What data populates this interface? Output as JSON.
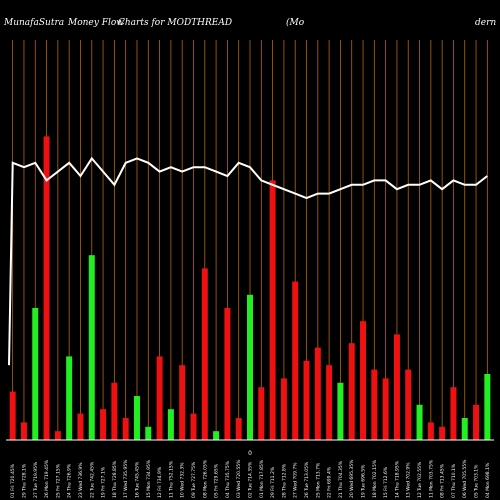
{
  "chart_data": {
    "type": "bar",
    "title_parts": [
      "MunafaSutra",
      "Money Flow",
      "Charts for MODTHREAD",
      "(Mo",
      "dern"
    ],
    "baseline_label": "0",
    "background": "#000000",
    "colors": {
      "up": "#22ee22",
      "down": "#ee1111",
      "grid": "#b8660b",
      "line": "#ffffff",
      "baseline": "#ffffff"
    },
    "ylim": [
      0,
      100
    ],
    "categories": [
      "01 Fri 720.45%",
      "29 Thu 728.1%",
      "27 Tue 719.95%",
      "26 Mon 719.45%",
      "25 Fri 727.15%",
      "24 Thu 726.9%",
      "23 Wed 736.9%",
      "22 Tue 742.45%",
      "19 Fri 727.1%",
      "18 Thu 728.85%",
      "17 Wed 735.95%",
      "16 Tue 745.45%",
      "15 Mon 734.95%",
      "12 Fri 734.9%",
      "11 Thu 752.15%",
      "10 Wed 732.3%",
      "09 Tue 727.75%",
      "08 Mon 726.05%",
      "05 Fri 729.65%",
      "04 Thu 735.75%",
      "03 Wed 720.55%",
      "02 Tue 714.35%",
      "01 Mon 717.85%",
      "29 Fri 711.2%",
      "28 Thu 712.8%",
      "27 Wed 709.7%",
      "26 Tue 713.05%",
      "25 Mon 713.7%",
      "22 Fri 699.4%",
      "21 Thu 704.35%",
      "20 Wed 695.35%",
      "19 Tue 696.5%",
      "18 Mon 702.15%",
      "15 Fri 712.6%",
      "14 Thu 718.95%",
      "13 Wed 702.9%",
      "12 Tue 702.55%",
      "11 Mon 703.75%",
      "08 Fri 713.45%",
      "07 Thu 710.1%",
      "06 Wed 705.55%",
      "05 Tue 703.1%",
      "04 Mon 698.1%"
    ],
    "series": [
      {
        "values": [
          11,
          4,
          30,
          69,
          2,
          19,
          6,
          42,
          7,
          13,
          5,
          10,
          3,
          19,
          7,
          17,
          6,
          39,
          2,
          30,
          5,
          33,
          12,
          59,
          14,
          36,
          18,
          21,
          17,
          13,
          22,
          27,
          16,
          14,
          24,
          16,
          8,
          4,
          3,
          12,
          5,
          8,
          15
        ],
        "directions": [
          "down",
          "down",
          "up",
          "down",
          "down",
          "up",
          "down",
          "up",
          "down",
          "down",
          "down",
          "up",
          "up",
          "down",
          "up",
          "down",
          "down",
          "down",
          "up",
          "down",
          "down",
          "up",
          "down",
          "down",
          "down",
          "down",
          "down",
          "down",
          "down",
          "up",
          "down",
          "down",
          "down",
          "down",
          "down",
          "down",
          "up",
          "down",
          "down",
          "down",
          "up",
          "down",
          "up"
        ]
      }
    ],
    "line": {
      "values": [
        63,
        62,
        63,
        59,
        61,
        63,
        60,
        64,
        61,
        58,
        63,
        64,
        63,
        61,
        62,
        61,
        62,
        62,
        61,
        60,
        63,
        62,
        59,
        58,
        57,
        56,
        55,
        56,
        56,
        57,
        58,
        58,
        59,
        59,
        57,
        58,
        58,
        59,
        57,
        59,
        58,
        58,
        60
      ]
    }
  }
}
